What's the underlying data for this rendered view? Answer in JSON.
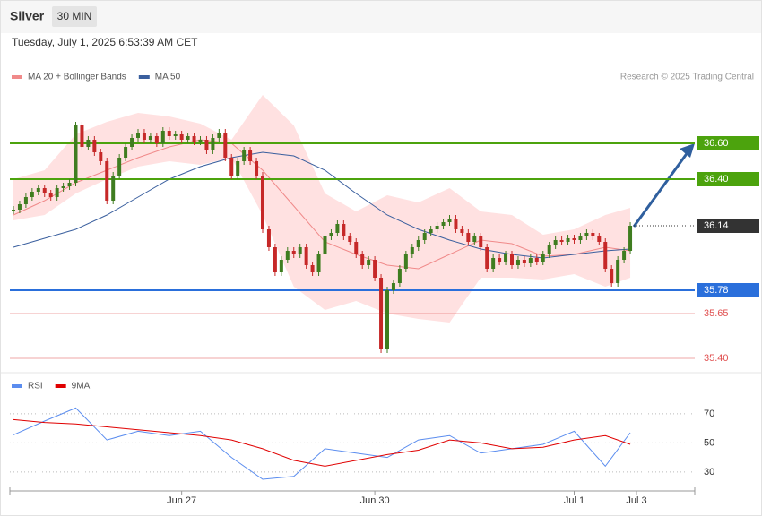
{
  "header": {
    "title": "Silver",
    "interval": "30 MIN",
    "timestamp": "Tuesday, July 1, 2025 6:53:39 AM CET"
  },
  "chart_data": [
    {
      "type": "candlestick",
      "credit": "Research © 2025 Trading Central",
      "up_color": "#3f7d20",
      "down_color": "#c62828",
      "xlim": [
        0,
        100
      ],
      "ylim": [
        35.35,
        36.95
      ],
      "closes": [
        36.23,
        36.26,
        36.3,
        36.33,
        36.35,
        36.32,
        36.3,
        36.35,
        36.36,
        36.38,
        36.7,
        36.58,
        36.62,
        36.55,
        36.5,
        36.28,
        36.42,
        36.52,
        36.58,
        36.63,
        36.66,
        36.62,
        36.64,
        36.6,
        36.67,
        36.64,
        36.65,
        36.62,
        36.64,
        36.61,
        36.62,
        36.56,
        36.63,
        36.66,
        36.52,
        36.42,
        36.5,
        36.56,
        36.5,
        36.42,
        36.12,
        36.02,
        35.88,
        35.95,
        36.0,
        35.98,
        36.02,
        35.92,
        35.88,
        35.98,
        36.08,
        36.1,
        36.15,
        36.08,
        36.05,
        35.98,
        35.92,
        35.95,
        35.85,
        35.45,
        35.78,
        35.82,
        35.9,
        35.98,
        36.02,
        36.06,
        36.1,
        36.12,
        36.14,
        36.16,
        36.18,
        36.12,
        36.1,
        36.05,
        36.08,
        36.02,
        35.9,
        35.96,
        35.94,
        35.98,
        35.92,
        35.95,
        35.93,
        35.96,
        35.94,
        35.98,
        36.03,
        36.06,
        36.05,
        36.07,
        36.06,
        36.08,
        36.1,
        36.08,
        36.05,
        35.9,
        35.82,
        35.95,
        36.0,
        36.14
      ],
      "indicators": {
        "x": [
          0,
          5,
          10,
          15,
          20,
          25,
          30,
          35,
          40,
          45,
          50,
          55,
          60,
          65,
          70,
          75,
          80,
          85,
          90,
          95,
          99
        ],
        "series": [
          {
            "name": "MA 20 + Bollinger Bands",
            "color": "#f08a8a",
            "band_color": "#ffe1e1",
            "values": [
              36.2,
              36.28,
              36.38,
              36.45,
              36.52,
              36.58,
              36.62,
              36.6,
              36.45,
              36.25,
              36.05,
              35.98,
              35.92,
              35.9,
              35.98,
              36.06,
              36.04,
              35.97,
              35.98,
              36.02,
              36.0
            ],
            "upper": [
              36.4,
              36.45,
              36.65,
              36.72,
              36.77,
              36.75,
              36.71,
              36.62,
              36.87,
              36.7,
              36.32,
              36.22,
              36.31,
              36.27,
              36.35,
              36.22,
              36.2,
              36.09,
              36.12,
              36.2,
              36.24
            ],
            "lower": [
              36.17,
              36.2,
              36.32,
              36.4,
              36.47,
              36.5,
              36.48,
              36.52,
              36.2,
              35.8,
              35.67,
              35.72,
              35.65,
              35.62,
              35.6,
              35.85,
              35.85,
              35.84,
              35.87,
              35.8,
              35.85
            ]
          },
          {
            "name": "MA 50",
            "color": "#3a5f9e",
            "values": [
              36.02,
              36.07,
              36.12,
              36.2,
              36.3,
              36.4,
              36.47,
              36.52,
              36.55,
              36.53,
              36.45,
              36.32,
              36.2,
              36.12,
              36.06,
              36.01,
              35.98,
              35.96,
              35.98,
              36.0,
              36.01
            ]
          }
        ]
      },
      "levels": [
        {
          "value": 36.6,
          "label": "36.60",
          "color": "#4ca30d",
          "tag": true
        },
        {
          "value": 36.4,
          "label": "36.40",
          "color": "#4ca30d",
          "tag": true
        },
        {
          "value": 36.14,
          "label": "36.14",
          "color": "#333333",
          "tag": true
        },
        {
          "value": 35.78,
          "label": "35.78",
          "color": "#2a6fdb",
          "tag": true
        },
        {
          "value": 35.65,
          "label": "35.65",
          "color": "#e05050",
          "tag": false
        },
        {
          "value": 35.4,
          "label": "35.40",
          "color": "#e05050",
          "tag": false
        }
      ]
    },
    {
      "type": "line",
      "xlim": [
        0,
        100
      ],
      "ylim": [
        17,
        97
      ],
      "yticks": [
        30,
        50,
        70
      ],
      "x": [
        0,
        5,
        10,
        15,
        20,
        25,
        30,
        35,
        40,
        45,
        50,
        55,
        60,
        65,
        70,
        75,
        80,
        85,
        90,
        95,
        99
      ],
      "xticks": [
        {
          "value": 27,
          "label": "Jun 27"
        },
        {
          "value": 58,
          "label": "Jun 30"
        },
        {
          "value": 90,
          "label": "Jul 1"
        },
        {
          "value": 100,
          "label": "Jul 3"
        }
      ],
      "series": [
        {
          "name": "RSI",
          "color": "#5b8def",
          "values": [
            55.5,
            65,
            74,
            52,
            58,
            55,
            58,
            40,
            25,
            27,
            46,
            43,
            40,
            52,
            55,
            43,
            46,
            49,
            58,
            34,
            57
          ]
        },
        {
          "name": "9MA",
          "color": "#e00000",
          "values": [
            66,
            64,
            63,
            61,
            59,
            57,
            55,
            52,
            46,
            38,
            34,
            38,
            42,
            45,
            52,
            50,
            46,
            47,
            52,
            55,
            49
          ]
        }
      ]
    }
  ]
}
